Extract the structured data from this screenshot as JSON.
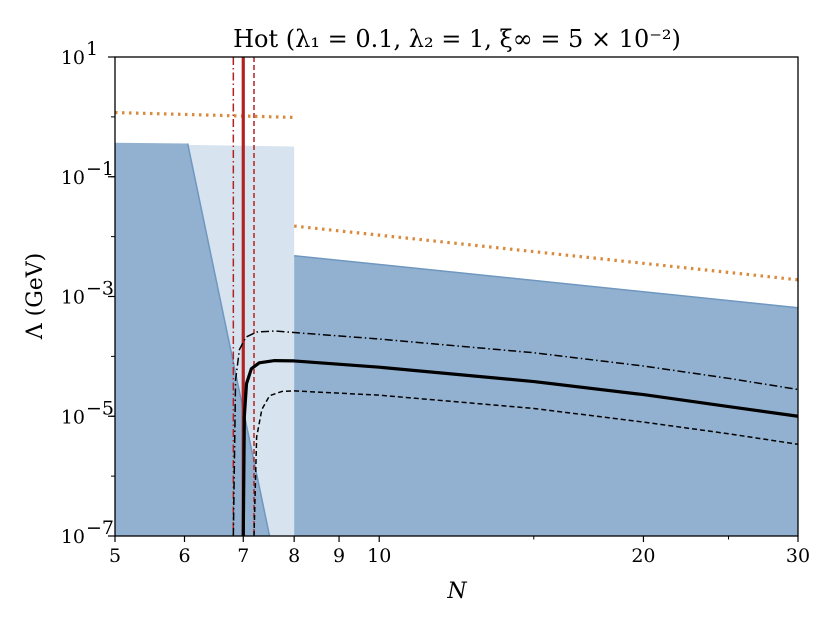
{
  "chart_data": {
    "type": "line",
    "title": "Hot (λ₁ = 0.1, λ₂ = 1, ξ∞ = 5 × 10⁻²)",
    "xlabel": "N",
    "ylabel": "Λ (GeV)",
    "x_scale": "log",
    "y_scale": "log",
    "xlim": [
      5,
      30
    ],
    "ylim": [
      1e-07,
      10
    ],
    "x_ticks": [
      {
        "value": 5,
        "label": "5"
      },
      {
        "value": 6,
        "label": "6"
      },
      {
        "value": 7,
        "label": "7"
      },
      {
        "value": 8,
        "label": "8"
      },
      {
        "value": 9,
        "label": "9"
      },
      {
        "value": 10,
        "label": "10"
      },
      {
        "value": 20,
        "label": "20"
      },
      {
        "value": 30,
        "label": "30"
      }
    ],
    "y_ticks": [
      {
        "value": 1e-07,
        "base": "10",
        "exp": "−7"
      },
      {
        "value": 1e-05,
        "base": "10",
        "exp": "−5"
      },
      {
        "value": 0.001,
        "base": "10",
        "exp": "−3"
      },
      {
        "value": 0.1,
        "base": "10",
        "exp": "−1"
      },
      {
        "value": 10,
        "base": "10",
        "exp": "1"
      }
    ],
    "grid": false,
    "legend": "none",
    "colors": {
      "dark_region": "#92b1d0",
      "light_region": "#d7e4ef",
      "region_edge": "#6f97bf",
      "dotted": "#d98a3c",
      "vertical": "#b22222",
      "curve": "#000000"
    },
    "regions": [
      {
        "style": "light",
        "points": [
          [
            6.05,
            0.34
          ],
          [
            8.0,
            0.32
          ],
          [
            8.0,
            1e-07
          ],
          [
            7.5,
            1e-07
          ]
        ]
      },
      {
        "style": "dark",
        "points": [
          [
            5.0,
            0.37
          ],
          [
            6.05,
            0.36
          ],
          [
            7.5,
            1e-07
          ],
          [
            5.0,
            1e-07
          ]
        ]
      },
      {
        "style": "dark",
        "points": [
          [
            8.0,
            0.0048
          ],
          [
            30.0,
            0.00065
          ],
          [
            30.0,
            1e-07
          ],
          [
            8.0,
            1e-07
          ]
        ]
      }
    ],
    "region_edges": [
      [
        [
          6.05,
          0.36
        ],
        [
          7.5,
          1e-07
        ]
      ],
      [
        [
          8.0,
          0.0048
        ],
        [
          30.0,
          0.00065
        ]
      ]
    ],
    "dotted_lines": [
      {
        "points": [
          [
            5.0,
            1.18
          ],
          [
            8.0,
            0.98
          ]
        ]
      },
      {
        "points": [
          [
            8.0,
            0.015
          ],
          [
            30.0,
            0.0019
          ]
        ]
      }
    ],
    "vertical_lines": [
      {
        "x": 7.0,
        "style": "solid"
      },
      {
        "x": 6.82,
        "style": "dashdot"
      },
      {
        "x": 7.2,
        "style": "dashed"
      }
    ],
    "series": [
      {
        "style": "solid",
        "points": [
          [
            7.0,
            1e-07
          ],
          [
            7.02,
            1e-05
          ],
          [
            7.06,
            3.5e-05
          ],
          [
            7.15,
            6.2e-05
          ],
          [
            7.3,
            7.8e-05
          ],
          [
            7.6,
            8.5e-05
          ],
          [
            8.0,
            8.4e-05
          ],
          [
            10.0,
            6.6e-05
          ],
          [
            15.0,
            3.8e-05
          ],
          [
            20.0,
            2.3e-05
          ],
          [
            25.0,
            1.45e-05
          ],
          [
            30.0,
            1e-05
          ]
        ]
      },
      {
        "style": "dashdot",
        "points": [
          [
            6.82,
            1e-07
          ],
          [
            6.86,
            4e-05
          ],
          [
            6.93,
            0.00013
          ],
          [
            7.05,
            0.00021
          ],
          [
            7.25,
            0.000255
          ],
          [
            7.6,
            0.000265
          ],
          [
            8.0,
            0.00025
          ],
          [
            10.0,
            0.000195
          ],
          [
            15.0,
            0.000115
          ],
          [
            20.0,
            6.9e-05
          ],
          [
            25.0,
            4.3e-05
          ],
          [
            30.0,
            2.8e-05
          ]
        ]
      },
      {
        "style": "dashed",
        "points": [
          [
            7.2,
            1e-07
          ],
          [
            7.25,
            4.5e-06
          ],
          [
            7.35,
            1.3e-05
          ],
          [
            7.5,
            2.2e-05
          ],
          [
            7.75,
            2.6e-05
          ],
          [
            8.0,
            2.65e-05
          ],
          [
            10.0,
            2.25e-05
          ],
          [
            15.0,
            1.35e-05
          ],
          [
            20.0,
            8e-06
          ],
          [
            25.0,
            5.1e-06
          ],
          [
            30.0,
            3.4e-06
          ]
        ]
      }
    ]
  }
}
